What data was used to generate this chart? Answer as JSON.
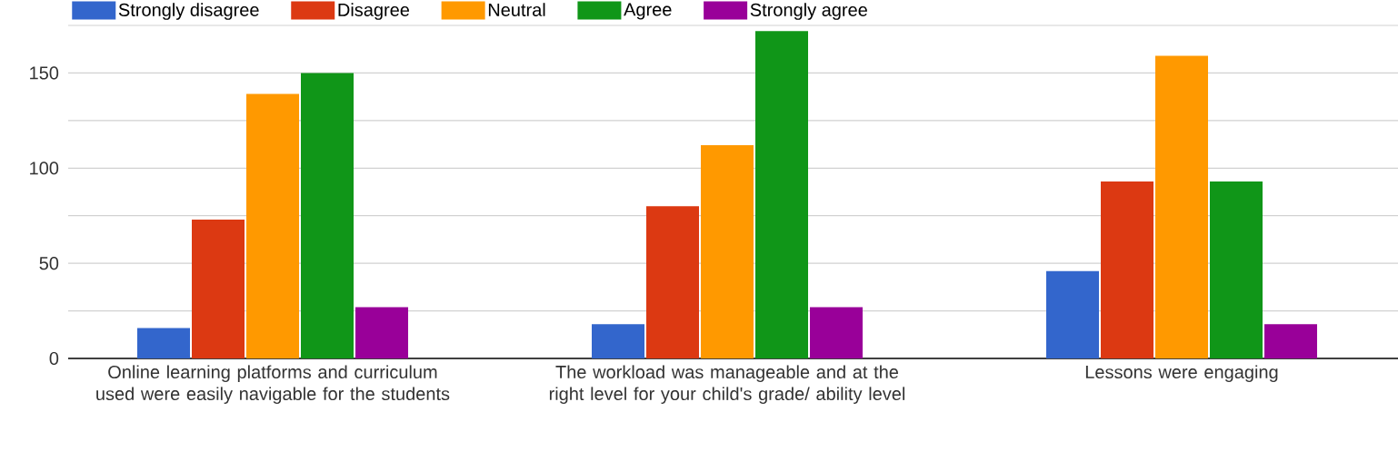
{
  "chart_data": {
    "type": "bar",
    "categories": [
      "Online learning platforms and curriculum used were easily navigable for the students",
      "The workload was manageable and at the right level for your child's grade/ ability level",
      "Lessons were engaging"
    ],
    "series": [
      {
        "name": "Strongly disagree",
        "color": "#3366cc",
        "values": [
          16,
          18,
          46
        ]
      },
      {
        "name": "Disagree",
        "color": "#dc3912",
        "values": [
          73,
          80,
          93
        ]
      },
      {
        "name": "Neutral",
        "color": "#ff9900",
        "values": [
          139,
          112,
          159
        ]
      },
      {
        "name": "Agree",
        "color": "#109618",
        "values": [
          150,
          172,
          93
        ]
      },
      {
        "name": "Strongly agree",
        "color": "#990099",
        "values": [
          27,
          27,
          18
        ]
      }
    ],
    "ylim": [
      0,
      175
    ],
    "yticks": [
      0,
      {
        "value": 25,
        "label": null
      },
      50,
      {
        "value": 75,
        "label": null
      },
      100,
      {
        "value": 125,
        "label": null
      },
      150,
      {
        "value": 175,
        "label": null
      }
    ],
    "grid": true,
    "legend": "top"
  }
}
